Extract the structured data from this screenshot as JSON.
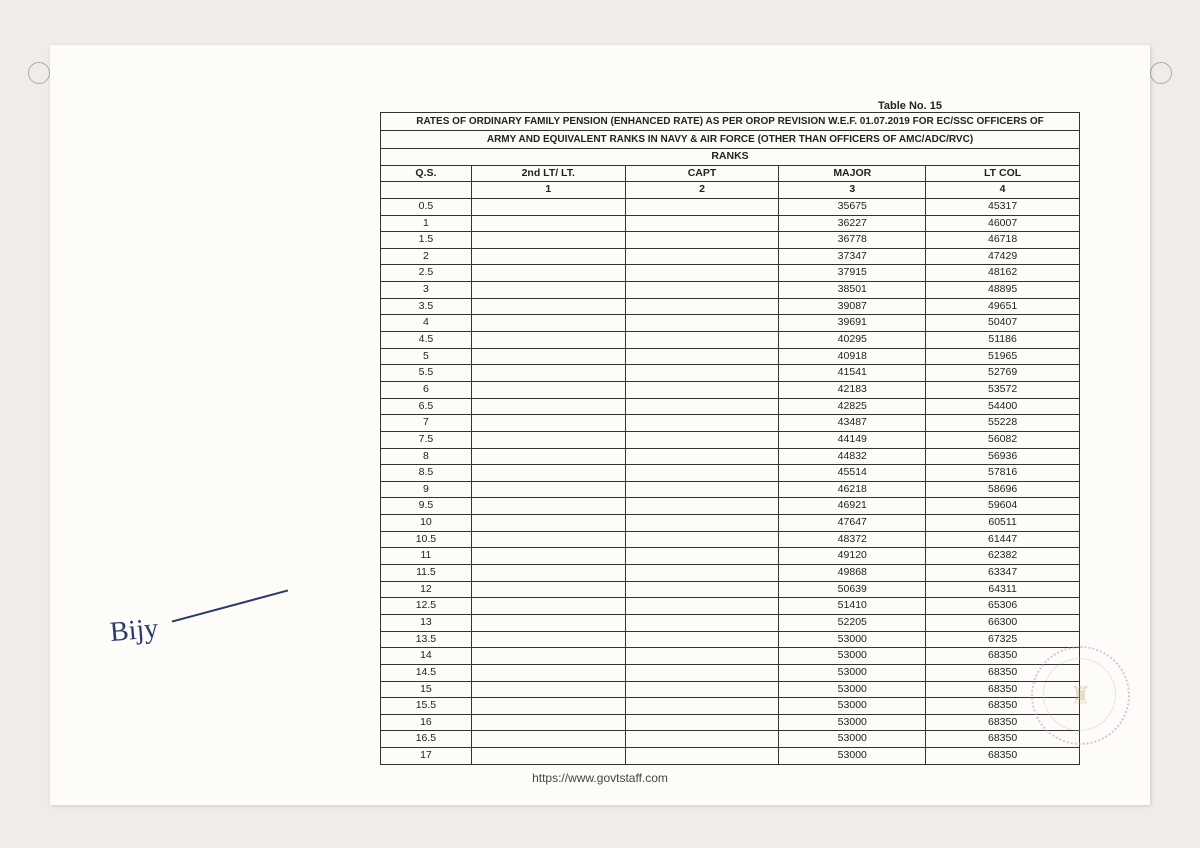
{
  "table_number": "Table No. 15",
  "title_line1": "RATES OF ORDINARY FAMILY PENSION (ENHANCED RATE) AS PER OROP REVISION W.E.F. 01.07.2019 FOR EC/SSC OFFICERS OF",
  "title_line2": "ARMY AND EQUIVALENT RANKS IN NAVY & AIR FORCE (OTHER THAN OFFICERS OF AMC/ADC/RVC)",
  "ranks_label": "RANKS",
  "headers": {
    "qs": "Q.S.",
    "col1": "2nd LT/ LT.",
    "col2": "CAPT",
    "col3": "MAJOR",
    "col4": "LT COL",
    "n1": "1",
    "n2": "2",
    "n3": "3",
    "n4": "4"
  },
  "rows": [
    {
      "qs": "0.5",
      "c1": "",
      "c2": "",
      "c3": "35675",
      "c4": "45317"
    },
    {
      "qs": "1",
      "c1": "",
      "c2": "",
      "c3": "36227",
      "c4": "46007"
    },
    {
      "qs": "1.5",
      "c1": "",
      "c2": "",
      "c3": "36778",
      "c4": "46718"
    },
    {
      "qs": "2",
      "c1": "",
      "c2": "",
      "c3": "37347",
      "c4": "47429"
    },
    {
      "qs": "2.5",
      "c1": "",
      "c2": "",
      "c3": "37915",
      "c4": "48162"
    },
    {
      "qs": "3",
      "c1": "",
      "c2": "",
      "c3": "38501",
      "c4": "48895"
    },
    {
      "qs": "3.5",
      "c1": "",
      "c2": "",
      "c3": "39087",
      "c4": "49651"
    },
    {
      "qs": "4",
      "c1": "",
      "c2": "",
      "c3": "39691",
      "c4": "50407"
    },
    {
      "qs": "4.5",
      "c1": "",
      "c2": "",
      "c3": "40295",
      "c4": "51186"
    },
    {
      "qs": "5",
      "c1": "",
      "c2": "",
      "c3": "40918",
      "c4": "51965"
    },
    {
      "qs": "5.5",
      "c1": "",
      "c2": "",
      "c3": "41541",
      "c4": "52769"
    },
    {
      "qs": "6",
      "c1": "",
      "c2": "",
      "c3": "42183",
      "c4": "53572"
    },
    {
      "qs": "6.5",
      "c1": "",
      "c2": "",
      "c3": "42825",
      "c4": "54400"
    },
    {
      "qs": "7",
      "c1": "",
      "c2": "",
      "c3": "43487",
      "c4": "55228"
    },
    {
      "qs": "7.5",
      "c1": "",
      "c2": "",
      "c3": "44149",
      "c4": "56082"
    },
    {
      "qs": "8",
      "c1": "",
      "c2": "",
      "c3": "44832",
      "c4": "56936"
    },
    {
      "qs": "8.5",
      "c1": "",
      "c2": "",
      "c3": "45514",
      "c4": "57816"
    },
    {
      "qs": "9",
      "c1": "",
      "c2": "",
      "c3": "46218",
      "c4": "58696"
    },
    {
      "qs": "9.5",
      "c1": "",
      "c2": "",
      "c3": "46921",
      "c4": "59604"
    },
    {
      "qs": "10",
      "c1": "",
      "c2": "",
      "c3": "47647",
      "c4": "60511"
    },
    {
      "qs": "10.5",
      "c1": "",
      "c2": "",
      "c3": "48372",
      "c4": "61447"
    },
    {
      "qs": "11",
      "c1": "",
      "c2": "",
      "c3": "49120",
      "c4": "62382"
    },
    {
      "qs": "11.5",
      "c1": "",
      "c2": "",
      "c3": "49868",
      "c4": "63347"
    },
    {
      "qs": "12",
      "c1": "",
      "c2": "",
      "c3": "50639",
      "c4": "64311"
    },
    {
      "qs": "12.5",
      "c1": "",
      "c2": "",
      "c3": "51410",
      "c4": "65306"
    },
    {
      "qs": "13",
      "c1": "",
      "c2": "",
      "c3": "52205",
      "c4": "66300"
    },
    {
      "qs": "13.5",
      "c1": "",
      "c2": "",
      "c3": "53000",
      "c4": "67325"
    },
    {
      "qs": "14",
      "c1": "",
      "c2": "",
      "c3": "53000",
      "c4": "68350"
    },
    {
      "qs": "14.5",
      "c1": "",
      "c2": "",
      "c3": "53000",
      "c4": "68350"
    },
    {
      "qs": "15",
      "c1": "",
      "c2": "",
      "c3": "53000",
      "c4": "68350"
    },
    {
      "qs": "15.5",
      "c1": "",
      "c2": "",
      "c3": "53000",
      "c4": "68350"
    },
    {
      "qs": "16",
      "c1": "",
      "c2": "",
      "c3": "53000",
      "c4": "68350"
    },
    {
      "qs": "16.5",
      "c1": "",
      "c2": "",
      "c3": "53000",
      "c4": "68350"
    },
    {
      "qs": "17",
      "c1": "",
      "c2": "",
      "c3": "53000",
      "c4": "68350"
    }
  ],
  "signature_text": "Bijy",
  "footer_url": "https://www.govtstaff.com",
  "colors": {
    "page_bg": "#fdfcf9",
    "body_bg": "#f0ede8",
    "text": "#222",
    "border": "#333",
    "ink": "#2a3a6a",
    "stamp": "#b895c4"
  }
}
